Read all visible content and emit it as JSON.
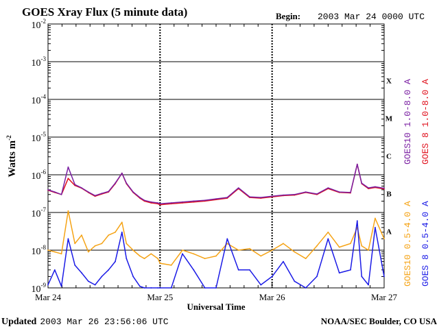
{
  "chart_data": {
    "type": "line",
    "title": "GOES Xray Flux (5 minute data)",
    "begin_label": "Begin:",
    "begin_value": "2003 Mar 24 0000 UTC",
    "ylabel": "Watts m",
    "ylabel_exp": "-2",
    "xlabel": "Universal Time",
    "ylim": [
      1e-09,
      0.01
    ],
    "yscale": "log",
    "y_ticks": [
      {
        "base": "10",
        "exp": "-2"
      },
      {
        "base": "10",
        "exp": "-3"
      },
      {
        "base": "10",
        "exp": "-4"
      },
      {
        "base": "10",
        "exp": "-5"
      },
      {
        "base": "10",
        "exp": "-6"
      },
      {
        "base": "10",
        "exp": "-7"
      },
      {
        "base": "10",
        "exp": "-8"
      },
      {
        "base": "10",
        "exp": "-9"
      }
    ],
    "x_ticks": [
      "Mar 24",
      "Mar 25",
      "Mar 26",
      "Mar 27"
    ],
    "x_range_days": [
      0,
      3
    ],
    "flare_classes": [
      "X",
      "M",
      "C",
      "B",
      "A"
    ],
    "grid": "horizontal decades, dashed day separators",
    "legend": "right side, vertical",
    "series": [
      {
        "name": "GOES10 1.0-8.0 A",
        "color": "#7a1fa2",
        "x": [
          0.0,
          0.06,
          0.12,
          0.18,
          0.24,
          0.3,
          0.36,
          0.42,
          0.48,
          0.54,
          0.6,
          0.66,
          0.7,
          0.76,
          0.82,
          0.86,
          0.92,
          0.98,
          1.0,
          1.1,
          1.2,
          1.3,
          1.4,
          1.5,
          1.6,
          1.7,
          1.8,
          1.9,
          2.0,
          2.1,
          2.2,
          2.3,
          2.4,
          2.5,
          2.6,
          2.7,
          2.76,
          2.8,
          2.86,
          2.92,
          3.0
        ],
        "values": [
          4e-07,
          3.5e-07,
          3e-07,
          1.6e-06,
          5.5e-07,
          4.5e-07,
          3.5e-07,
          2.8e-07,
          3.2e-07,
          3.6e-07,
          6e-07,
          1.1e-06,
          6e-07,
          3.5e-07,
          2.5e-07,
          2.1e-07,
          1.9e-07,
          1.8e-07,
          1.7e-07,
          1.8e-07,
          1.9e-07,
          2e-07,
          2.1e-07,
          2.3e-07,
          2.5e-07,
          4.5e-07,
          2.6e-07,
          2.5e-07,
          2.7e-07,
          2.9e-07,
          3e-07,
          3.5e-07,
          3.1e-07,
          4.5e-07,
          3.5e-07,
          3.4e-07,
          1.9e-06,
          6e-07,
          4.5e-07,
          4.8e-07,
          4.4e-07
        ]
      },
      {
        "name": "GOES 8 1.0-8.0 A",
        "color": "#e0101c",
        "x": [
          0.0,
          0.06,
          0.12,
          0.18,
          0.24,
          0.3,
          0.36,
          0.42,
          0.48,
          0.54,
          0.6,
          0.66,
          0.7,
          0.76,
          0.82,
          0.86,
          0.92,
          0.98,
          1.0,
          1.1,
          1.2,
          1.3,
          1.4,
          1.5,
          1.6,
          1.7,
          1.8,
          1.9,
          2.0,
          2.1,
          2.2,
          2.3,
          2.4,
          2.5,
          2.6,
          2.7,
          2.76,
          2.8,
          2.86,
          2.92,
          3.0
        ],
        "values": [
          3.9e-07,
          3.4e-07,
          3e-07,
          8e-07,
          5.2e-07,
          4.4e-07,
          3.4e-07,
          2.7e-07,
          3.1e-07,
          3.5e-07,
          5.8e-07,
          1.1e-06,
          5.8e-07,
          3.4e-07,
          2.4e-07,
          2e-07,
          1.8e-07,
          1.7e-07,
          1.6e-07,
          1.7e-07,
          1.8e-07,
          1.9e-07,
          2e-07,
          2.2e-07,
          2.4e-07,
          4.3e-07,
          2.5e-07,
          2.4e-07,
          2.6e-07,
          2.8e-07,
          2.9e-07,
          3.4e-07,
          3e-07,
          4.3e-07,
          3.4e-07,
          3.3e-07,
          1.9e-06,
          5.8e-07,
          4.3e-07,
          4.6e-07,
          4.2e-07
        ]
      },
      {
        "name": "GOES10 0.5-4.0 A",
        "color": "#f5a315",
        "x": [
          0.0,
          0.06,
          0.12,
          0.18,
          0.24,
          0.3,
          0.36,
          0.42,
          0.48,
          0.54,
          0.6,
          0.66,
          0.7,
          0.76,
          0.82,
          0.86,
          0.92,
          0.98,
          1.0,
          1.1,
          1.2,
          1.3,
          1.4,
          1.5,
          1.6,
          1.7,
          1.8,
          1.9,
          2.0,
          2.1,
          2.2,
          2.3,
          2.4,
          2.5,
          2.6,
          2.7,
          2.76,
          2.8,
          2.86,
          2.92,
          3.0
        ],
        "values": [
          1e-08,
          9e-09,
          8e-09,
          1.1e-07,
          1.5e-08,
          2.5e-08,
          9e-09,
          1.3e-08,
          1.5e-08,
          2.5e-08,
          3e-08,
          5.5e-08,
          1.5e-08,
          1e-08,
          7e-09,
          6e-09,
          8e-09,
          6e-09,
          4.5e-09,
          4e-09,
          1e-08,
          8e-09,
          6e-09,
          7e-09,
          1.5e-08,
          1e-08,
          1.1e-08,
          7e-09,
          1e-08,
          1.5e-08,
          9e-09,
          6e-09,
          1.3e-08,
          3e-08,
          1.2e-08,
          1.5e-08,
          4e-08,
          1.3e-08,
          1e-08,
          7e-08,
          2e-08
        ]
      },
      {
        "name": "GOES 8 0.5-4.0 A",
        "color": "#1a1ae6",
        "x": [
          0.0,
          0.06,
          0.12,
          0.18,
          0.24,
          0.3,
          0.36,
          0.42,
          0.48,
          0.54,
          0.6,
          0.66,
          0.7,
          0.76,
          0.82,
          0.86,
          0.92,
          0.98,
          1.0,
          1.1,
          1.2,
          1.3,
          1.4,
          1.5,
          1.6,
          1.7,
          1.8,
          1.9,
          2.0,
          2.1,
          2.2,
          2.3,
          2.4,
          2.5,
          2.6,
          2.7,
          2.76,
          2.8,
          2.86,
          2.92,
          3.0
        ],
        "values": [
          1.2e-09,
          3e-09,
          1.1e-09,
          2e-08,
          4e-09,
          2.5e-09,
          1.5e-09,
          1.2e-09,
          2e-09,
          3e-09,
          5e-09,
          3e-08,
          6e-09,
          2e-09,
          1.1e-09,
          1e-09,
          1e-09,
          1e-09,
          1e-09,
          1e-09,
          8e-09,
          3e-09,
          1e-09,
          1e-09,
          2e-08,
          3e-09,
          3e-09,
          1.2e-09,
          2e-09,
          5e-09,
          1.5e-09,
          1e-09,
          2e-09,
          2e-08,
          2.5e-09,
          3e-09,
          6e-08,
          2e-09,
          1.2e-09,
          4e-08,
          2e-09
        ]
      }
    ]
  },
  "footer": {
    "updated_label": "Updated",
    "updated_value": "2003 Mar 26 23:56:06 UTC",
    "source": "NOAA/SEC Boulder, CO USA"
  }
}
